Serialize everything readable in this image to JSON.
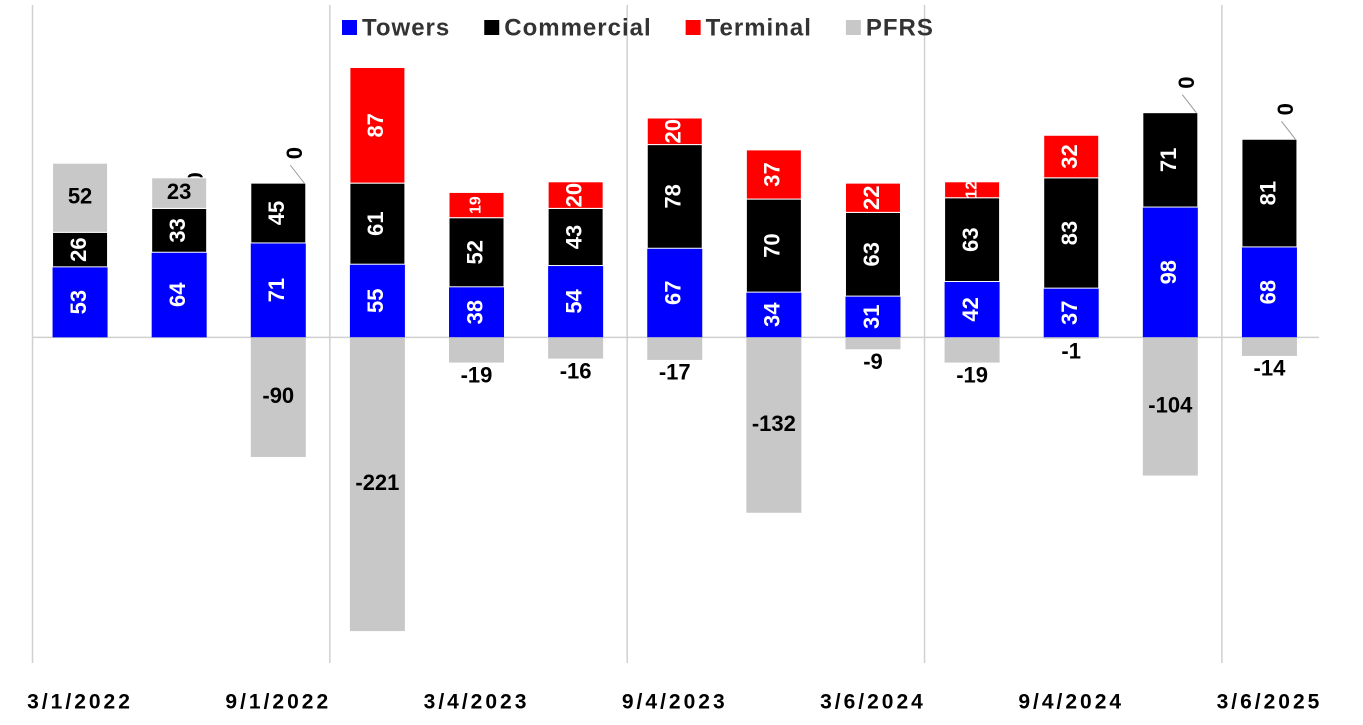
{
  "chart_data": {
    "type": "stacked_bar",
    "categories": [
      "3/1/2022",
      null,
      "9/1/2022",
      null,
      "3/4/2023",
      null,
      "9/4/2023",
      null,
      "3/6/2024",
      null,
      "9/4/2024",
      null,
      "3/6/2025"
    ],
    "series": [
      {
        "name": "Towers",
        "color": "#0000ff",
        "values": [
          53,
          64,
          71,
          55,
          38,
          54,
          67,
          34,
          31,
          42,
          37,
          98,
          68
        ]
      },
      {
        "name": "Commercial",
        "color": "#000000",
        "values": [
          26,
          33,
          45,
          61,
          52,
          43,
          78,
          70,
          63,
          63,
          83,
          71,
          81
        ]
      },
      {
        "name": "Terminal",
        "color": "#ff0000",
        "values": [
          0,
          0,
          0,
          87,
          19,
          20,
          20,
          37,
          22,
          12,
          32,
          0,
          0
        ]
      },
      {
        "name": "PFRS",
        "color": "#c8c8c8",
        "values": [
          52,
          23,
          -90,
          -221,
          -19,
          -16,
          -17,
          -132,
          -9,
          -19,
          -1,
          -104,
          -14
        ]
      }
    ],
    "ylim": [
      -245,
      250
    ],
    "legend": "top"
  }
}
